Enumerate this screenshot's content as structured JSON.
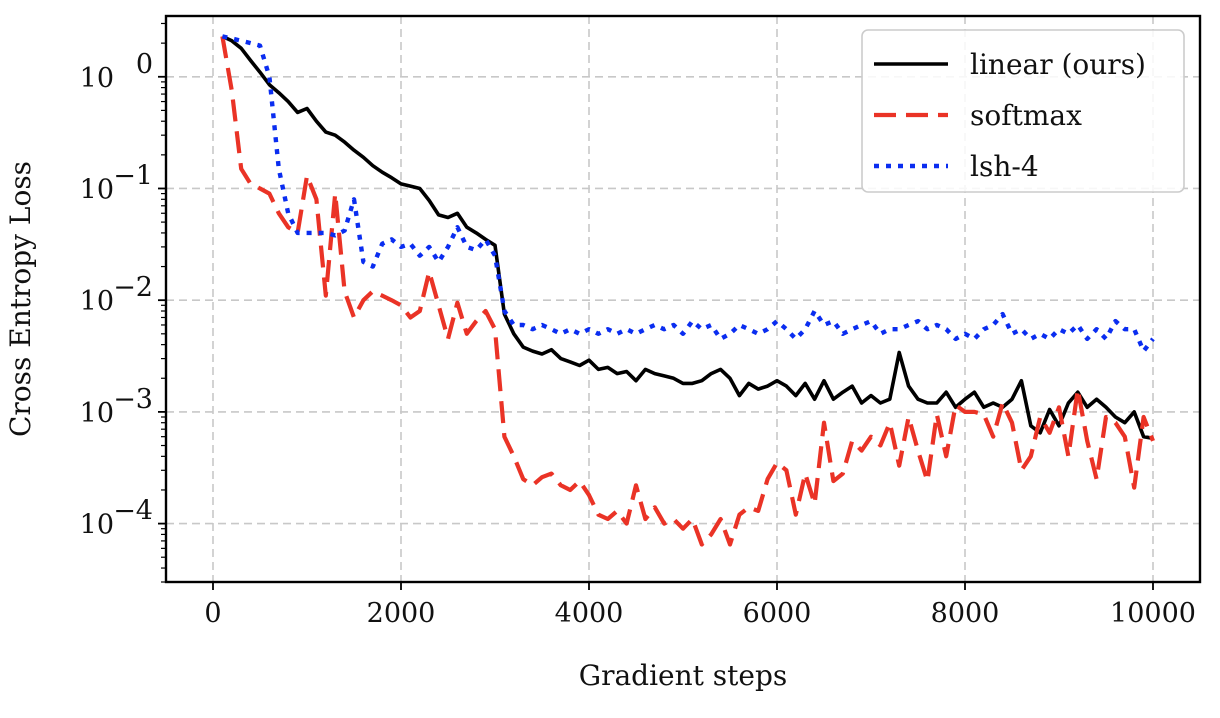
{
  "chart_data": {
    "type": "line",
    "title": "",
    "xlabel": "Gradient steps",
    "ylabel": "Cross Entropy Loss",
    "yscale": "log",
    "xlim": [
      -500,
      10500
    ],
    "ylim": [
      3e-05,
      3.5
    ],
    "xticks": [
      0,
      2000,
      4000,
      6000,
      8000,
      10000
    ],
    "xtick_labels": [
      "0",
      "2000",
      "4000",
      "6000",
      "8000",
      "10000"
    ],
    "ytick_labels": [
      {
        "mantissa": "10",
        "exp": "0",
        "value": 1
      },
      {
        "mantissa": "10",
        "exp": "−1",
        "value": 0.1
      },
      {
        "mantissa": "10",
        "exp": "−2",
        "value": 0.01
      },
      {
        "mantissa": "10",
        "exp": "−3",
        "value": 0.001
      },
      {
        "mantissa": "10",
        "exp": "−4",
        "value": 0.0001
      }
    ],
    "grid": true,
    "legend_position": "top-right",
    "x": [
      100,
      200,
      300,
      400,
      500,
      600,
      700,
      800,
      900,
      1000,
      1100,
      1200,
      1300,
      1400,
      1500,
      1600,
      1700,
      1800,
      1900,
      2000,
      2100,
      2200,
      2300,
      2400,
      2500,
      2600,
      2700,
      2800,
      2900,
      3000,
      3100,
      3200,
      3300,
      3400,
      3500,
      3600,
      3700,
      3800,
      3900,
      4000,
      4100,
      4200,
      4300,
      4400,
      4500,
      4600,
      4700,
      4800,
      4900,
      5000,
      5100,
      5200,
      5300,
      5400,
      5500,
      5600,
      5700,
      5800,
      5900,
      6000,
      6100,
      6200,
      6300,
      6400,
      6500,
      6600,
      6700,
      6800,
      6900,
      7000,
      7100,
      7200,
      7300,
      7400,
      7500,
      7600,
      7700,
      7800,
      7900,
      8000,
      8100,
      8200,
      8300,
      8400,
      8500,
      8600,
      8700,
      8800,
      8900,
      9000,
      9100,
      9200,
      9300,
      9400,
      9500,
      9600,
      9700,
      9800,
      9900,
      10000
    ],
    "series": [
      {
        "name": "linear (ours)",
        "color": "#000000",
        "dash": "solid",
        "values": [
          2.3,
          2.1,
          1.8,
          1.4,
          1.1,
          0.85,
          0.72,
          0.6,
          0.48,
          0.52,
          0.4,
          0.32,
          0.3,
          0.26,
          0.22,
          0.19,
          0.16,
          0.14,
          0.125,
          0.11,
          0.105,
          0.1,
          0.078,
          0.058,
          0.055,
          0.06,
          0.045,
          0.04,
          0.035,
          0.031,
          0.0075,
          0.005,
          0.0038,
          0.0035,
          0.0033,
          0.0036,
          0.003,
          0.0028,
          0.0026,
          0.0029,
          0.0024,
          0.0025,
          0.0022,
          0.0023,
          0.0019,
          0.0024,
          0.0022,
          0.0021,
          0.002,
          0.0018,
          0.0018,
          0.0019,
          0.0022,
          0.0024,
          0.002,
          0.0014,
          0.0018,
          0.0016,
          0.0017,
          0.0019,
          0.0017,
          0.0014,
          0.0018,
          0.0013,
          0.0019,
          0.0013,
          0.0015,
          0.0017,
          0.0012,
          0.0014,
          0.0012,
          0.0013,
          0.0034,
          0.0017,
          0.0013,
          0.0012,
          0.0012,
          0.0015,
          0.0011,
          0.0013,
          0.0015,
          0.0011,
          0.0012,
          0.0011,
          0.0013,
          0.0019,
          0.00075,
          0.00065,
          0.00105,
          0.00075,
          0.0012,
          0.0015,
          0.0011,
          0.0013,
          0.0011,
          0.0009,
          0.0008,
          0.001,
          0.0006,
          0.00058
        ]
      },
      {
        "name": "softmax",
        "color": "#ea3326",
        "dash": "dashed",
        "values": [
          2.3,
          0.75,
          0.15,
          0.11,
          0.1,
          0.09,
          0.06,
          0.045,
          0.04,
          0.13,
          0.08,
          0.011,
          0.09,
          0.012,
          0.007,
          0.01,
          0.012,
          0.011,
          0.01,
          0.009,
          0.007,
          0.008,
          0.018,
          0.009,
          0.0045,
          0.0095,
          0.005,
          0.0065,
          0.008,
          0.0055,
          0.0006,
          0.0004,
          0.00025,
          0.00022,
          0.00026,
          0.00028,
          0.00022,
          0.0002,
          0.00024,
          0.00018,
          0.00012,
          0.00011,
          0.00013,
          0.0001,
          0.00022,
          0.00011,
          0.00014,
          0.0001,
          0.00011,
          9e-05,
          0.00011,
          6.5e-05,
          8e-05,
          0.00011,
          6.5e-05,
          0.00012,
          0.00014,
          0.00013,
          0.00025,
          0.00035,
          0.0003,
          0.00012,
          0.00028,
          0.00015,
          0.0008,
          0.00024,
          0.00028,
          0.00055,
          0.00045,
          0.0006,
          0.0005,
          0.0008,
          0.00033,
          0.0009,
          0.00045,
          0.00024,
          0.00095,
          0.0004,
          0.00115,
          0.001,
          0.001,
          0.00095,
          0.0006,
          0.0012,
          0.0008,
          0.0003,
          0.0004,
          0.0009,
          0.00065,
          0.0011,
          0.0004,
          0.0016,
          0.00055,
          0.00025,
          0.0009,
          0.0008,
          0.0006,
          0.00021,
          0.0009,
          0.00055
        ]
      },
      {
        "name": "lsh-4",
        "color": "#0a2df0",
        "dash": "dotted",
        "values": [
          2.3,
          2.2,
          2.1,
          2.0,
          1.9,
          1.0,
          0.15,
          0.06,
          0.04,
          0.04,
          0.04,
          0.04,
          0.038,
          0.042,
          0.08,
          0.022,
          0.02,
          0.032,
          0.035,
          0.03,
          0.032,
          0.025,
          0.03,
          0.022,
          0.03,
          0.045,
          0.03,
          0.028,
          0.035,
          0.025,
          0.008,
          0.006,
          0.006,
          0.0055,
          0.006,
          0.0055,
          0.005,
          0.0055,
          0.005,
          0.0055,
          0.005,
          0.0055,
          0.005,
          0.0055,
          0.005,
          0.0055,
          0.006,
          0.0055,
          0.006,
          0.005,
          0.0065,
          0.0055,
          0.006,
          0.0045,
          0.005,
          0.006,
          0.0055,
          0.005,
          0.0055,
          0.0065,
          0.0055,
          0.0045,
          0.0055,
          0.008,
          0.006,
          0.0065,
          0.005,
          0.0055,
          0.006,
          0.0065,
          0.005,
          0.0055,
          0.0055,
          0.006,
          0.0065,
          0.0055,
          0.006,
          0.0055,
          0.0045,
          0.005,
          0.0045,
          0.0055,
          0.006,
          0.0075,
          0.005,
          0.0055,
          0.0045,
          0.005,
          0.0045,
          0.0055,
          0.005,
          0.006,
          0.0045,
          0.0055,
          0.0045,
          0.0065,
          0.0055,
          0.0055,
          0.0035,
          0.0045
        ]
      }
    ]
  }
}
